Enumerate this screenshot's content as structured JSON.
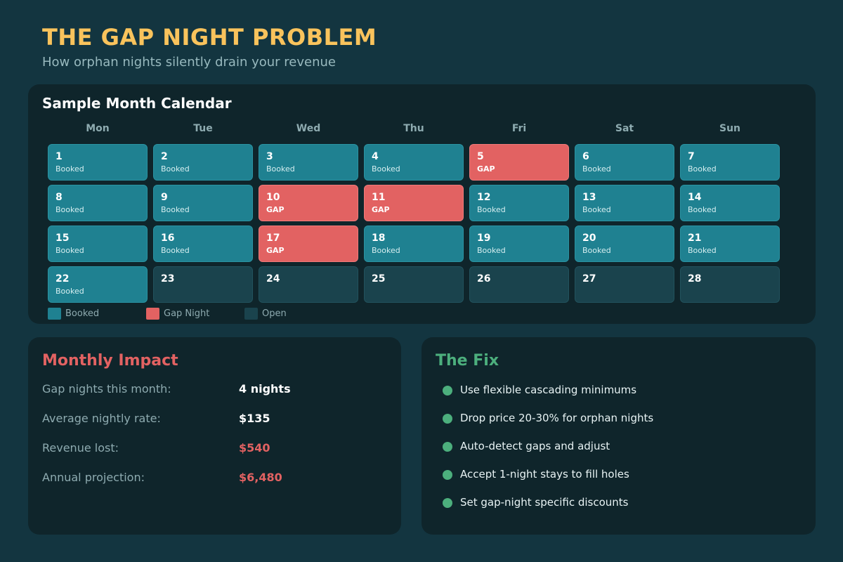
{
  "header": {
    "title": "THE GAP NIGHT PROBLEM",
    "subtitle": "How orphan nights silently drain your revenue"
  },
  "calendar": {
    "title": "Sample Month Calendar",
    "weekdays": [
      "Mon",
      "Tue",
      "Wed",
      "Thu",
      "Fri",
      "Sat",
      "Sun"
    ],
    "days": [
      {
        "day": "1",
        "status": "booked",
        "label": "Booked"
      },
      {
        "day": "2",
        "status": "booked",
        "label": "Booked"
      },
      {
        "day": "3",
        "status": "booked",
        "label": "Booked"
      },
      {
        "day": "4",
        "status": "booked",
        "label": "Booked"
      },
      {
        "day": "5",
        "status": "gap",
        "label": "GAP"
      },
      {
        "day": "6",
        "status": "booked",
        "label": "Booked"
      },
      {
        "day": "7",
        "status": "booked",
        "label": "Booked"
      },
      {
        "day": "8",
        "status": "booked",
        "label": "Booked"
      },
      {
        "day": "9",
        "status": "booked",
        "label": "Booked"
      },
      {
        "day": "10",
        "status": "gap",
        "label": "GAP"
      },
      {
        "day": "11",
        "status": "gap",
        "label": "GAP"
      },
      {
        "day": "12",
        "status": "booked",
        "label": "Booked"
      },
      {
        "day": "13",
        "status": "booked",
        "label": "Booked"
      },
      {
        "day": "14",
        "status": "booked",
        "label": "Booked"
      },
      {
        "day": "15",
        "status": "booked",
        "label": "Booked"
      },
      {
        "day": "16",
        "status": "booked",
        "label": "Booked"
      },
      {
        "day": "17",
        "status": "gap",
        "label": "GAP"
      },
      {
        "day": "18",
        "status": "booked",
        "label": "Booked"
      },
      {
        "day": "19",
        "status": "booked",
        "label": "Booked"
      },
      {
        "day": "20",
        "status": "booked",
        "label": "Booked"
      },
      {
        "day": "21",
        "status": "booked",
        "label": "Booked"
      },
      {
        "day": "22",
        "status": "booked",
        "label": "Booked"
      },
      {
        "day": "23",
        "status": "open",
        "label": ""
      },
      {
        "day": "24",
        "status": "open",
        "label": ""
      },
      {
        "day": "25",
        "status": "open",
        "label": ""
      },
      {
        "day": "26",
        "status": "open",
        "label": ""
      },
      {
        "day": "27",
        "status": "open",
        "label": ""
      },
      {
        "day": "28",
        "status": "open",
        "label": ""
      }
    ],
    "legend": [
      {
        "status": "booked",
        "label": "Booked",
        "color": "#1f8191"
      },
      {
        "status": "gap",
        "label": "Gap Night",
        "color": "#e26262"
      },
      {
        "status": "open",
        "label": "Open",
        "color": "#1a434d"
      }
    ]
  },
  "impact": {
    "title": "Monthly Impact",
    "title_color": "#e26262",
    "rows": [
      {
        "label": "Gap nights this month:",
        "value": "4 nights",
        "color": "#ffffff"
      },
      {
        "label": "Average nightly rate:",
        "value": "$135",
        "color": "#ffffff"
      },
      {
        "label": "Revenue lost:",
        "value": "$540",
        "color": "#e26262"
      },
      {
        "label": "Annual projection:",
        "value": "$6,480",
        "color": "#e26262"
      }
    ]
  },
  "fix": {
    "title": "The Fix",
    "title_color": "#4caf7d",
    "bullet_color": "#4caf7d",
    "items": [
      "Use flexible cascading minimums",
      "Drop price 20-30% for orphan nights",
      "Auto-detect gaps and adjust",
      "Accept 1-night stays to fill holes",
      "Set gap-night specific discounts"
    ]
  }
}
